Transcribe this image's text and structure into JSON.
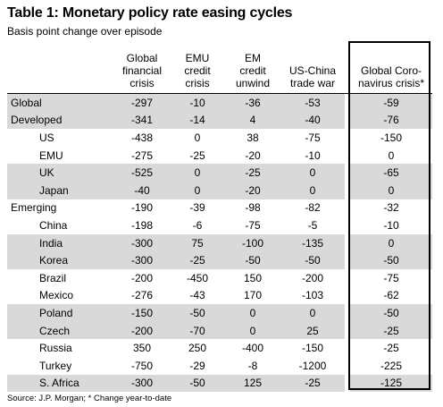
{
  "title": "Table 1: Monetary policy rate easing cycles",
  "subtitle": "Basis point change over episode",
  "columns": [
    {
      "lines": [
        "Global",
        "financial",
        "crisis"
      ]
    },
    {
      "lines": [
        "EMU",
        "credit",
        "crisis"
      ]
    },
    {
      "lines": [
        "EM",
        "credit",
        "unwind"
      ]
    },
    {
      "lines": [
        "US-China",
        "trade war"
      ]
    },
    {
      "lines": [
        "Global Coro-",
        "navirus crisis*"
      ]
    }
  ],
  "rows": [
    {
      "label": "Global",
      "values": [
        "-297",
        "-10",
        "-36",
        "-53",
        "-59"
      ],
      "indent": false,
      "shaded": true
    },
    {
      "label": "Developed",
      "values": [
        "-341",
        "-14",
        "4",
        "-40",
        "-76"
      ],
      "indent": false,
      "shaded": true
    },
    {
      "label": "US",
      "values": [
        "-438",
        "0",
        "38",
        "-75",
        "-150"
      ],
      "indent": true,
      "shaded": false
    },
    {
      "label": "EMU",
      "values": [
        "-275",
        "-25",
        "-20",
        "-10",
        "0"
      ],
      "indent": true,
      "shaded": false
    },
    {
      "label": "UK",
      "values": [
        "-525",
        "0",
        "-25",
        "0",
        "-65"
      ],
      "indent": true,
      "shaded": true
    },
    {
      "label": "Japan",
      "values": [
        "-40",
        "0",
        "-20",
        "0",
        "0"
      ],
      "indent": true,
      "shaded": true
    },
    {
      "label": "Emerging",
      "values": [
        "-190",
        "-39",
        "-98",
        "-82",
        "-32"
      ],
      "indent": false,
      "shaded": false
    },
    {
      "label": "China",
      "values": [
        "-198",
        "-6",
        "-75",
        "-5",
        "-10"
      ],
      "indent": true,
      "shaded": false
    },
    {
      "label": "India",
      "values": [
        "-300",
        "75",
        "-100",
        "-135",
        "0"
      ],
      "indent": true,
      "shaded": true
    },
    {
      "label": "Korea",
      "values": [
        "-300",
        "-25",
        "-50",
        "-50",
        "-50"
      ],
      "indent": true,
      "shaded": true
    },
    {
      "label": "Brazil",
      "values": [
        "-200",
        "-450",
        "150",
        "-200",
        "-75"
      ],
      "indent": true,
      "shaded": false
    },
    {
      "label": "Mexico",
      "values": [
        "-276",
        "-43",
        "170",
        "-103",
        "-62"
      ],
      "indent": true,
      "shaded": false
    },
    {
      "label": "Poland",
      "values": [
        "-150",
        "-50",
        "0",
        "0",
        "-50"
      ],
      "indent": true,
      "shaded": true
    },
    {
      "label": "Czech",
      "values": [
        "-200",
        "-70",
        "0",
        "25",
        "-25"
      ],
      "indent": true,
      "shaded": true
    },
    {
      "label": "Russia",
      "values": [
        "350",
        "250",
        "-400",
        "-150",
        "-25"
      ],
      "indent": true,
      "shaded": false
    },
    {
      "label": "Turkey",
      "values": [
        "-750",
        "-29",
        "-8",
        "-1200",
        "-225"
      ],
      "indent": true,
      "shaded": false
    },
    {
      "label": "S. Africa",
      "values": [
        "-300",
        "-50",
        "125",
        "-25",
        "-125"
      ],
      "indent": true,
      "shaded": true
    }
  ],
  "source": "Source: J.P. Morgan; * Change year-to-date"
}
